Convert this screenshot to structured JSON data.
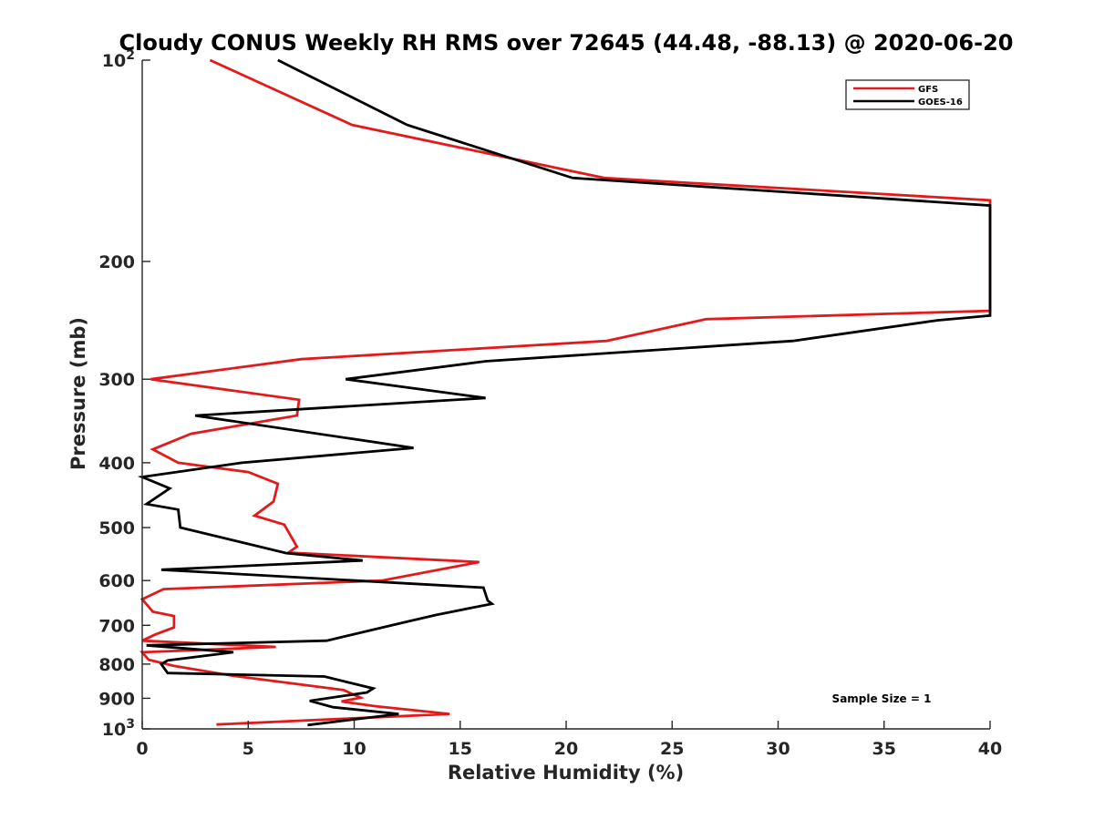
{
  "chart_data": {
    "type": "line",
    "title": "Cloudy CONUS Weekly RH RMS over 72645 (44.48, -88.13) @ 2020-06-20",
    "xlabel": "Relative Humidity (%)",
    "ylabel": "Pressure (mb)",
    "xlim": [
      0,
      40
    ],
    "ylim": [
      100,
      1000
    ],
    "y_scale": "log",
    "y_reversed": true,
    "grid": false,
    "legend_position": "top-right",
    "x_ticks": [
      "0",
      "5",
      "10",
      "15",
      "20",
      "25",
      "30",
      "35",
      "40"
    ],
    "y_ticks": [
      {
        "value": 100,
        "base": "10",
        "exp": "2"
      },
      {
        "value": 200,
        "label": "200"
      },
      {
        "value": 300,
        "label": "300"
      },
      {
        "value": 400,
        "label": "400"
      },
      {
        "value": 500,
        "label": "500"
      },
      {
        "value": 600,
        "label": "600"
      },
      {
        "value": 700,
        "label": "700"
      },
      {
        "value": 800,
        "label": "800"
      },
      {
        "value": 900,
        "label": "900"
      },
      {
        "value": 1000,
        "base": "10",
        "exp": "3"
      }
    ],
    "series": [
      {
        "name": "GFS",
        "color": "#e31a1c",
        "points": [
          [
            3.2,
            100
          ],
          [
            9.9,
            125
          ],
          [
            21.8,
            150
          ],
          [
            40,
            162
          ],
          [
            40,
            237
          ],
          [
            26.6,
            244
          ],
          [
            21.9,
            263
          ],
          [
            7.5,
            280
          ],
          [
            0.4,
            300
          ],
          [
            7.4,
            322
          ],
          [
            7.3,
            340
          ],
          [
            2.3,
            362
          ],
          [
            0.5,
            382
          ],
          [
            1.7,
            400
          ],
          [
            5.0,
            413
          ],
          [
            6.4,
            430
          ],
          [
            6.2,
            457
          ],
          [
            5.3,
            480
          ],
          [
            6.7,
            495
          ],
          [
            7.3,
            534
          ],
          [
            6.9,
            545
          ],
          [
            15.9,
            563
          ],
          [
            11.3,
            600
          ],
          [
            1.0,
            618
          ],
          [
            0.0,
            640
          ],
          [
            0.5,
            668
          ],
          [
            1.5,
            678
          ],
          [
            1.5,
            705
          ],
          [
            0.6,
            723
          ],
          [
            0.0,
            738
          ],
          [
            6.3,
            754
          ],
          [
            0.0,
            768
          ],
          [
            0.3,
            788
          ],
          [
            1.5,
            805
          ],
          [
            4.3,
            833
          ],
          [
            9.5,
            875
          ],
          [
            10.3,
            898
          ],
          [
            9.4,
            910
          ],
          [
            11.0,
            925
          ],
          [
            14.5,
            950
          ],
          [
            3.5,
            985
          ]
        ]
      },
      {
        "name": "GOES-16",
        "color": "#000000",
        "points": [
          [
            6.4,
            100
          ],
          [
            12.5,
            125
          ],
          [
            20.3,
            150
          ],
          [
            40,
            165
          ],
          [
            40,
            241
          ],
          [
            37.5,
            245
          ],
          [
            30.7,
            263
          ],
          [
            16.2,
            282
          ],
          [
            9.6,
            300
          ],
          [
            16.2,
            320
          ],
          [
            2.5,
            340
          ],
          [
            12.8,
            380
          ],
          [
            4.7,
            400
          ],
          [
            0.0,
            420
          ],
          [
            1.3,
            437
          ],
          [
            0.2,
            461
          ],
          [
            1.7,
            470
          ],
          [
            1.8,
            500
          ],
          [
            6.8,
            546
          ],
          [
            10.4,
            560
          ],
          [
            0.9,
            578
          ],
          [
            16.1,
            615
          ],
          [
            16.3,
            643
          ],
          [
            16.5,
            650
          ],
          [
            13.9,
            675
          ],
          [
            12.6,
            690
          ],
          [
            8.7,
            738
          ],
          [
            0.2,
            750
          ],
          [
            4.3,
            768
          ],
          [
            1.2,
            790
          ],
          [
            0.9,
            800
          ],
          [
            1.2,
            825
          ],
          [
            8.6,
            835
          ],
          [
            10.9,
            870
          ],
          [
            10.6,
            882
          ],
          [
            7.9,
            908
          ],
          [
            9.0,
            928
          ],
          [
            12.1,
            950
          ],
          [
            7.8,
            987
          ]
        ]
      }
    ],
    "annotations": [
      {
        "text": "Sample Size = 1",
        "x": 37,
        "y": 880
      }
    ]
  }
}
